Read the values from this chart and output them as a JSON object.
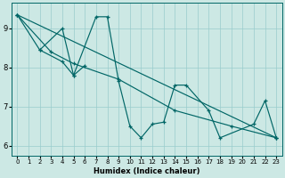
{
  "xlabel": "Humidex (Indice chaleur)",
  "bg_color": "#cce8e4",
  "line_color": "#006666",
  "grid_color": "#99cccc",
  "xlim": [
    -0.5,
    23.5
  ],
  "ylim": [
    5.75,
    9.65
  ],
  "xticks": [
    0,
    1,
    2,
    3,
    4,
    5,
    6,
    7,
    8,
    9,
    10,
    11,
    12,
    13,
    14,
    15,
    16,
    17,
    18,
    19,
    20,
    21,
    22,
    23
  ],
  "yticks": [
    6,
    7,
    8,
    9
  ],
  "lines": [
    {
      "x": [
        0,
        23
      ],
      "y": [
        9.35,
        6.2
      ]
    },
    {
      "x": [
        0,
        3,
        5,
        9,
        14,
        19,
        23
      ],
      "y": [
        9.35,
        8.4,
        8.1,
        7.7,
        6.9,
        6.5,
        6.2
      ]
    },
    {
      "comment": "zigzag line: 2->8.45, 4->9.0, 5->7.8, 7->9.3, 8->9.3, 9->7.65, 10->6.5, 11->6.2, 12->6.55, 13->6.6, 14->7.55, 15->7.55, 17->6.9, 18->6.2, 21->6.55, 22->7.15, 23->6.2",
      "x": [
        2,
        4,
        5,
        7,
        8,
        9,
        10,
        11,
        12,
        13,
        14,
        15,
        17,
        18,
        21,
        22,
        23
      ],
      "y": [
        8.45,
        9.0,
        7.8,
        9.3,
        9.3,
        7.65,
        6.5,
        6.2,
        6.55,
        6.6,
        7.55,
        7.55,
        6.9,
        6.2,
        6.55,
        7.15,
        6.2
      ]
    },
    {
      "comment": "short segment top area: 0->9.35, 2->8.45, 4->8.15, 5->7.8, 6->8.05",
      "x": [
        0,
        2,
        4,
        5,
        6
      ],
      "y": [
        9.35,
        8.45,
        8.15,
        7.8,
        8.05
      ]
    }
  ]
}
